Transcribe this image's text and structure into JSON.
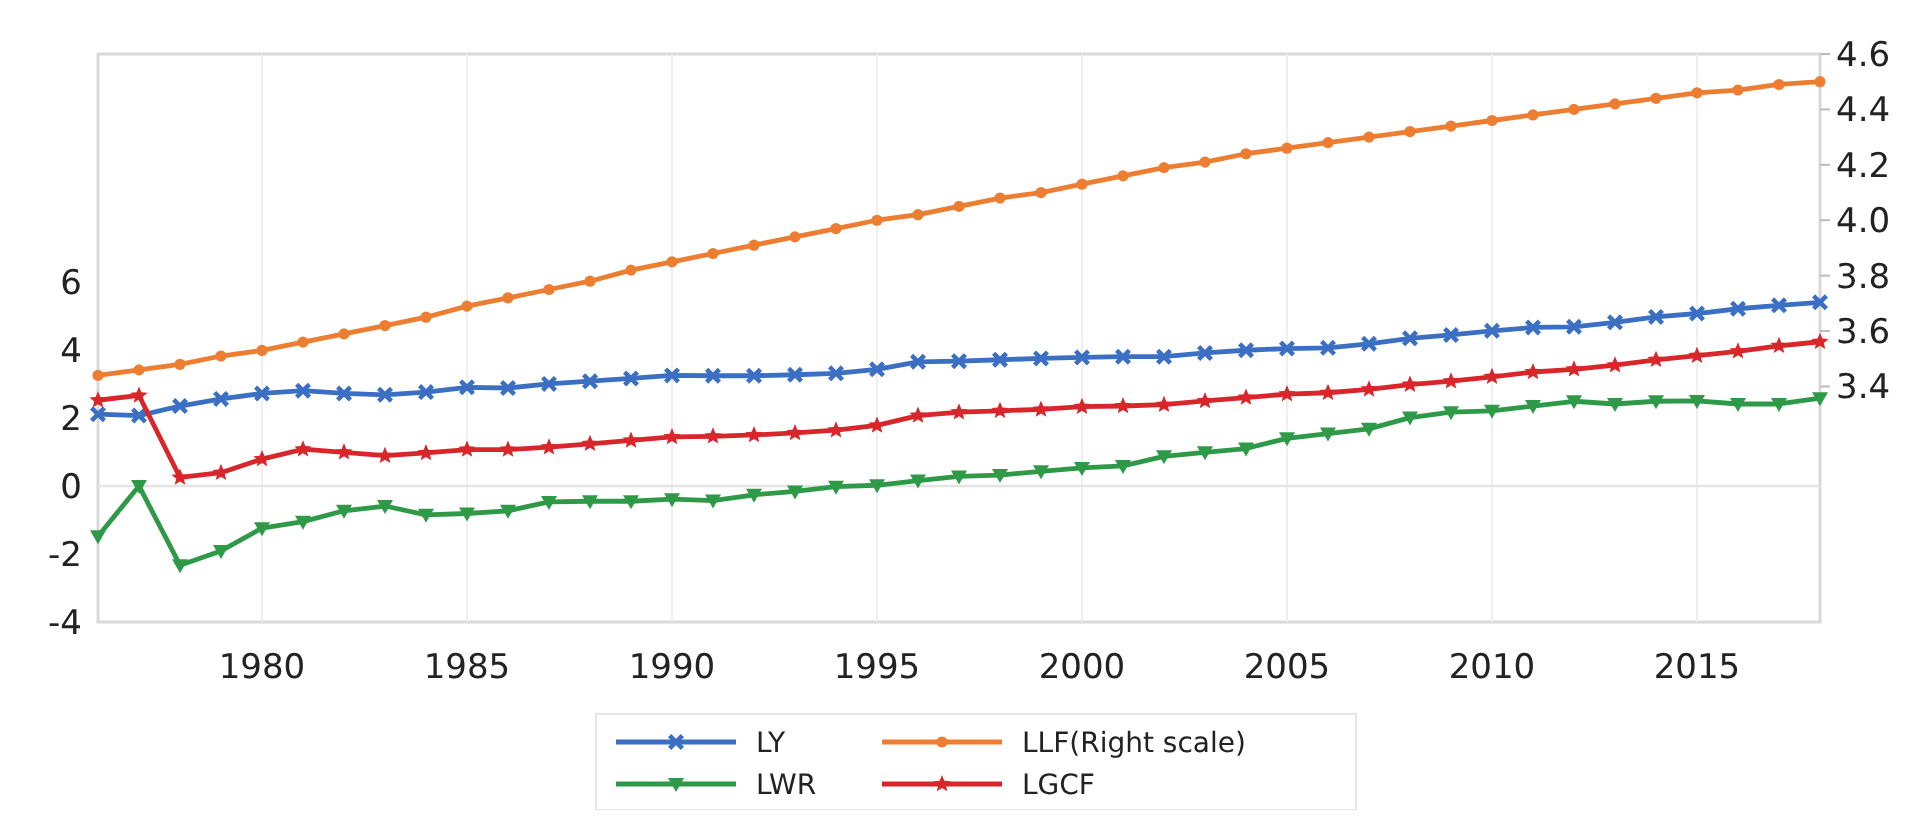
{
  "chart_data": {
    "type": "line",
    "x": [
      1976,
      1977,
      1978,
      1979,
      1980,
      1981,
      1982,
      1983,
      1984,
      1985,
      1986,
      1987,
      1988,
      1989,
      1990,
      1991,
      1992,
      1993,
      1994,
      1995,
      1996,
      1997,
      1998,
      1999,
      2000,
      2001,
      2002,
      2003,
      2004,
      2005,
      2006,
      2007,
      2008,
      2009,
      2010,
      2011,
      2012,
      2013,
      2014,
      2015,
      2016,
      2017,
      2018
    ],
    "series": [
      {
        "name": "LY",
        "color": "#3a6fc4",
        "marker": "cross",
        "values": [
          2.11,
          2.07,
          2.35,
          2.56,
          2.72,
          2.8,
          2.72,
          2.68,
          2.76,
          2.9,
          2.88,
          3.0,
          3.08,
          3.16,
          3.25,
          3.24,
          3.24,
          3.27,
          3.31,
          3.43,
          3.65,
          3.67,
          3.71,
          3.75,
          3.78,
          3.8,
          3.8,
          3.91,
          3.99,
          4.04,
          4.06,
          4.18,
          4.34,
          4.44,
          4.56,
          4.66,
          4.68,
          4.81,
          4.97,
          5.07,
          5.21,
          5.31,
          5.4
        ]
      },
      {
        "name": "LLF(Right scale)",
        "color": "#ed7d31",
        "marker": "circle",
        "axis": "y2",
        "values": [
          3.44,
          3.46,
          3.48,
          3.51,
          3.53,
          3.56,
          3.59,
          3.62,
          3.65,
          3.69,
          3.72,
          3.75,
          3.78,
          3.82,
          3.85,
          3.88,
          3.91,
          3.94,
          3.97,
          4.0,
          4.02,
          4.05,
          4.08,
          4.1,
          4.13,
          4.16,
          4.19,
          4.21,
          4.24,
          4.26,
          4.28,
          4.3,
          4.32,
          4.34,
          4.36,
          4.38,
          4.4,
          4.42,
          4.44,
          4.46,
          4.47,
          4.49,
          4.5
        ]
      },
      {
        "name": "LWR",
        "color": "#2e9a48",
        "marker": "triangle",
        "values": [
          -1.48,
          0.0,
          -2.33,
          -1.91,
          -1.24,
          -1.05,
          -0.73,
          -0.59,
          -0.85,
          -0.81,
          -0.73,
          -0.47,
          -0.45,
          -0.45,
          -0.39,
          -0.43,
          -0.26,
          -0.16,
          -0.02,
          0.02,
          0.16,
          0.28,
          0.32,
          0.43,
          0.53,
          0.59,
          0.87,
          0.99,
          1.1,
          1.4,
          1.54,
          1.68,
          2.01,
          2.17,
          2.21,
          2.35,
          2.49,
          2.41,
          2.49,
          2.5,
          2.41,
          2.41,
          2.58
        ]
      },
      {
        "name": "LGCF",
        "color": "#d9262b",
        "marker": "star",
        "values": [
          2.52,
          2.66,
          0.25,
          0.39,
          0.79,
          1.08,
          0.99,
          0.89,
          0.97,
          1.07,
          1.07,
          1.14,
          1.24,
          1.34,
          1.44,
          1.46,
          1.5,
          1.56,
          1.64,
          1.78,
          2.07,
          2.17,
          2.21,
          2.25,
          2.33,
          2.35,
          2.39,
          2.5,
          2.6,
          2.7,
          2.74,
          2.84,
          2.98,
          3.08,
          3.21,
          3.35,
          3.43,
          3.55,
          3.71,
          3.83,
          3.96,
          4.12,
          4.24
        ]
      }
    ],
    "xlim": [
      1976,
      2018
    ],
    "xticks": [
      1980,
      1985,
      1990,
      1995,
      2000,
      2005,
      2010,
      2015
    ],
    "ylim": [
      -4,
      12.7
    ],
    "yticks": [
      -4,
      -2,
      0,
      2,
      4,
      6
    ],
    "y2lim": [
      2.55,
      4.6
    ],
    "y2ticks": [
      3.4,
      3.6,
      3.8,
      {
        "value": 4,
        "label": "4.0"
      },
      4.2,
      4.4,
      4.6
    ],
    "ref_lines": [
      {
        "axis": "y",
        "value": 0,
        "color": "#e4e4e4"
      }
    ],
    "grid": "x",
    "legend": "bottom"
  }
}
